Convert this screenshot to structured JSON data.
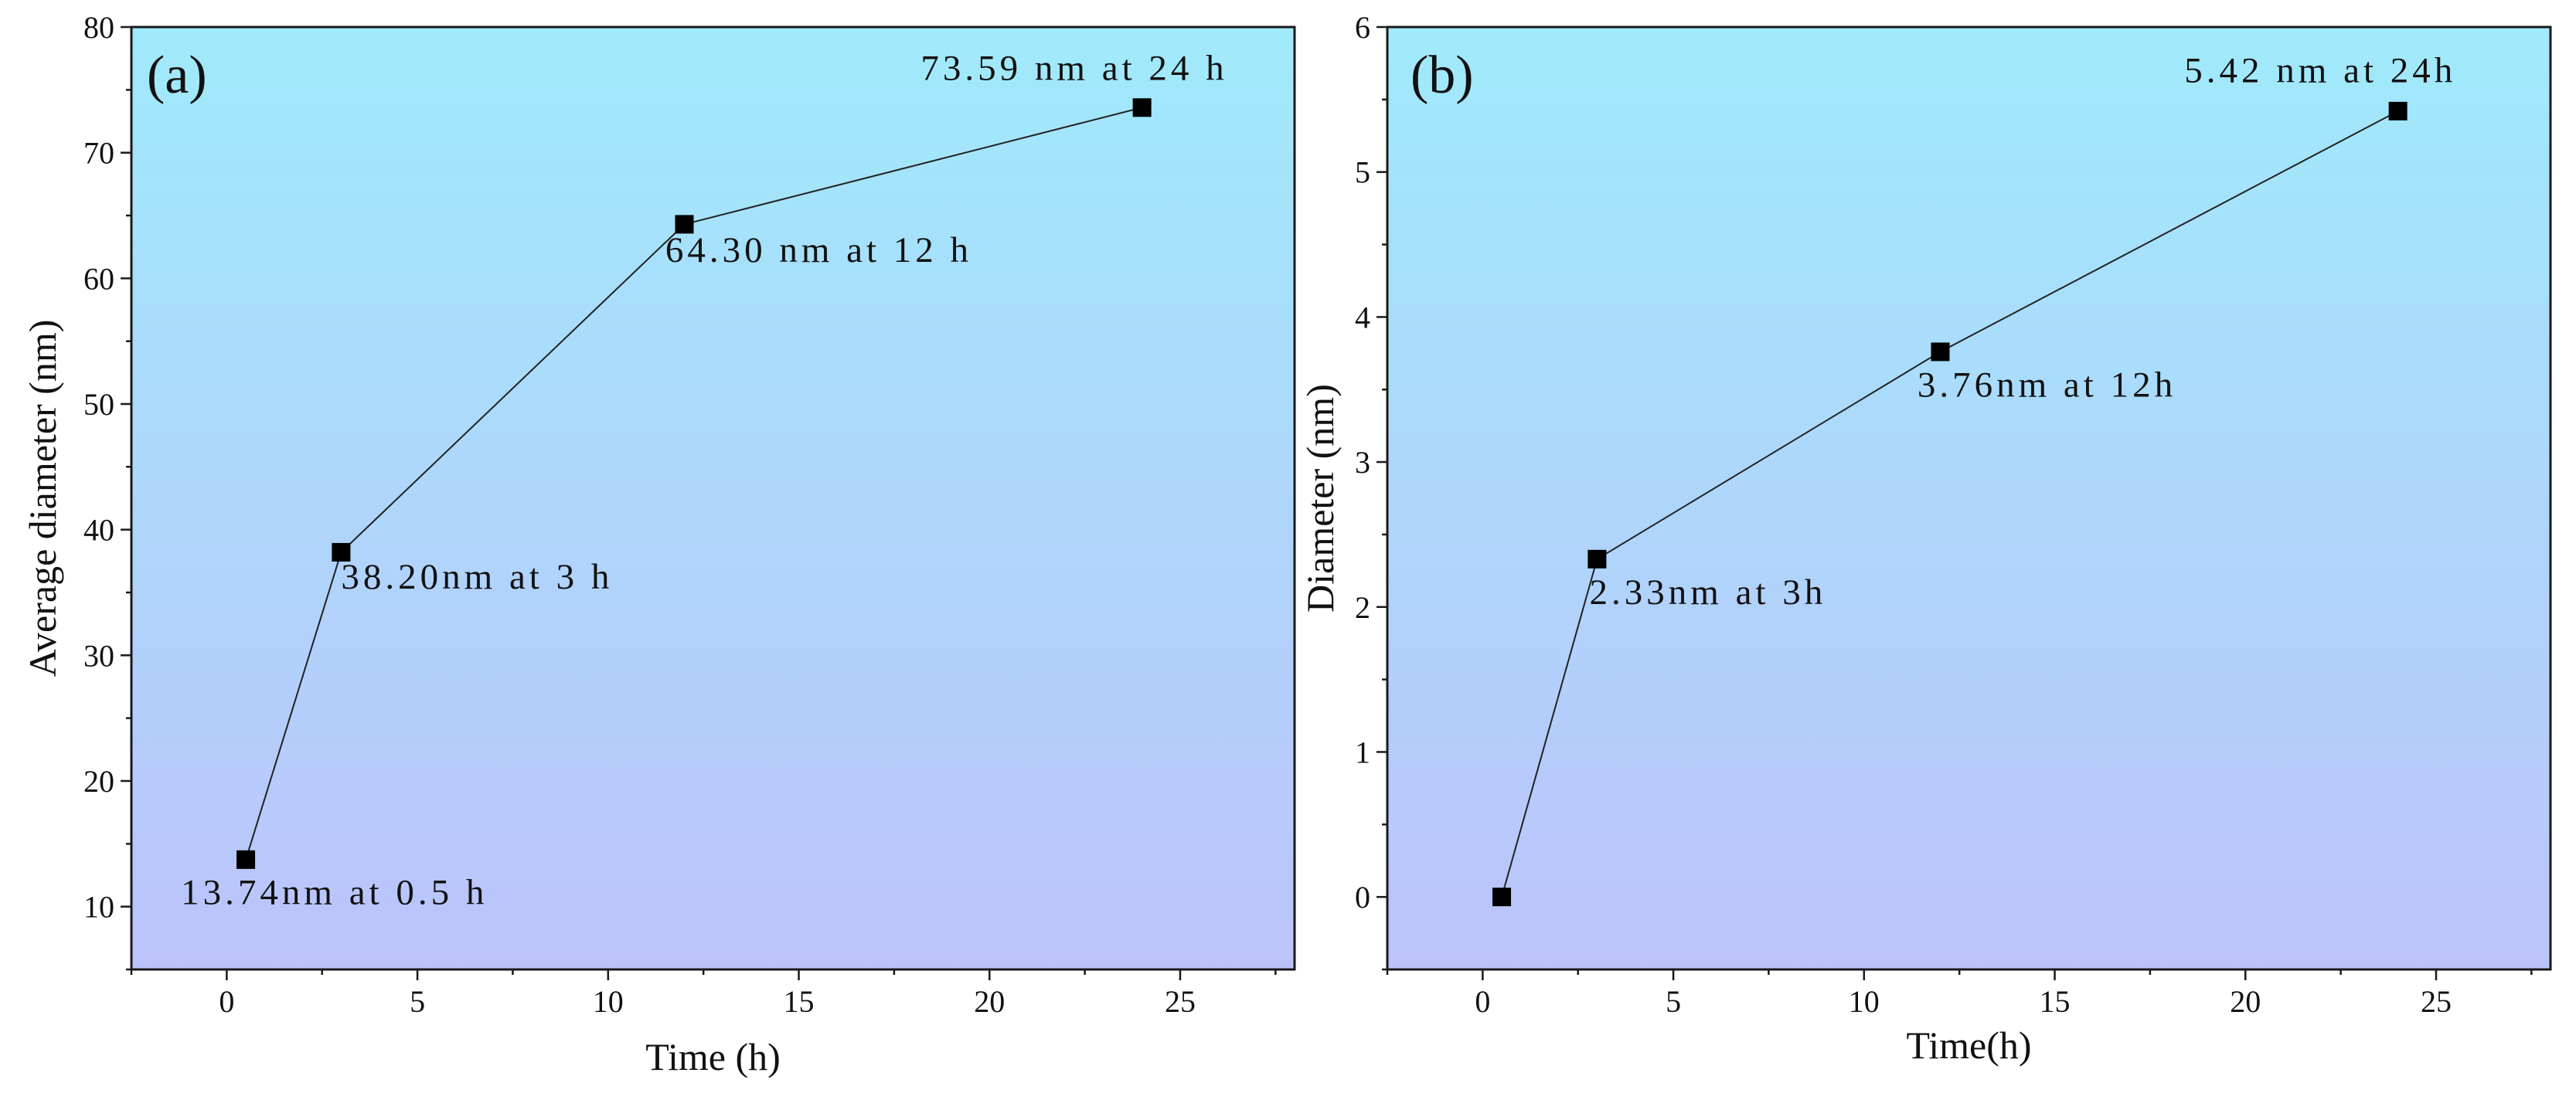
{
  "chart_data": [
    {
      "type": "line",
      "panel_label": "(a)",
      "xlabel": "Time (h)",
      "ylabel": "Average diameter (nm)",
      "xlim": [
        -2.5,
        28
      ],
      "ylim": [
        5,
        80
      ],
      "x_ticks": [
        0,
        5,
        10,
        15,
        20,
        25
      ],
      "y_ticks": [
        10,
        20,
        30,
        40,
        50,
        60,
        70,
        80
      ],
      "x_tick_labels": [
        "0",
        "5",
        "10",
        "15",
        "20",
        "25"
      ],
      "y_tick_labels": [
        "10",
        "20",
        "30",
        "40",
        "50",
        "60",
        "70",
        "80"
      ],
      "background_gradient": [
        "#a0eafb",
        "#bcc3fb"
      ],
      "series": [
        {
          "name": "Average diameter",
          "x": [
            0.5,
            3,
            12,
            24
          ],
          "y": [
            13.74,
            38.2,
            64.3,
            73.59
          ],
          "marker": "square",
          "color": "#000000"
        }
      ],
      "annotations": [
        {
          "text": "13.74nm at 0.5 h",
          "x": -1.2,
          "y": 10.2
        },
        {
          "text": "38.20nm at 3 h",
          "x": 3,
          "y": 35.3
        },
        {
          "text": "64.30 nm at 12 h",
          "x": 11.5,
          "y": 61.3
        },
        {
          "text": "73.59 nm at 24 h",
          "x": 18.2,
          "y": 75.8
        }
      ]
    },
    {
      "type": "line",
      "panel_label": "(b)",
      "xlabel": "Time(h)",
      "ylabel": "Diameter (nm)",
      "xlim": [
        -2.5,
        28
      ],
      "ylim": [
        -0.5,
        6
      ],
      "x_ticks": [
        0,
        5,
        10,
        15,
        20,
        25
      ],
      "y_ticks": [
        0,
        1,
        2,
        3,
        4,
        5,
        6
      ],
      "x_tick_labels": [
        "0",
        "5",
        "10",
        "15",
        "20",
        "25"
      ],
      "y_tick_labels": [
        "0",
        "1",
        "2",
        "3",
        "4",
        "5",
        "6"
      ],
      "background_gradient": [
        "#a0eafb",
        "#bcc3fb"
      ],
      "series": [
        {
          "name": "Diameter",
          "x": [
            0.5,
            3,
            12,
            24
          ],
          "y": [
            0,
            2.33,
            3.76,
            5.42
          ],
          "marker": "square",
          "color": "#000000"
        }
      ],
      "annotations": [
        {
          "text": "2.33nm at 3h",
          "x": 2.8,
          "y": 2.02
        },
        {
          "text": "3.76nm at 12h",
          "x": 11.4,
          "y": 3.45
        },
        {
          "text": "5.42 nm at 24h",
          "x": 18.4,
          "y": 5.62
        }
      ]
    }
  ]
}
